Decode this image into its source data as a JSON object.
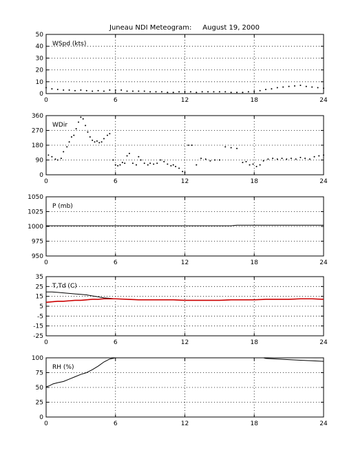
{
  "title": "Juneau NDI Meteogram:     August 19, 2000",
  "colors": {
    "primary": "#000000",
    "secondary": "#cc0000",
    "background": "#ffffff",
    "grid": "#000000"
  },
  "chart_data": [
    {
      "type": "scatter",
      "label": "WSpd (kts)",
      "ylim": [
        0,
        50
      ],
      "yticks": [
        0,
        10,
        20,
        30,
        40,
        50
      ],
      "xlim": [
        0,
        24
      ],
      "xticks": [
        0,
        6,
        12,
        18,
        24
      ],
      "grid": true,
      "series": [
        {
          "x": [
            0,
            0.5,
            1,
            1.5,
            2,
            2.5,
            3,
            3.5,
            4,
            4.5,
            5,
            5.5,
            6,
            6.5,
            7,
            7.5,
            8,
            8.5,
            9,
            9.5,
            10,
            10.5,
            11,
            11.5,
            12,
            12.5,
            13,
            13.5,
            14,
            14.5,
            15,
            15.5,
            16,
            16.5,
            17,
            17.5,
            18,
            18.5,
            19,
            19.5,
            20,
            20.5,
            21,
            21.5,
            22,
            22.5,
            23,
            23.5,
            24
          ],
          "values": [
            5,
            4,
            3.5,
            3,
            3,
            2.5,
            3,
            2.5,
            2,
            2.5,
            2,
            3,
            3,
            3,
            2,
            2,
            2,
            2,
            1.5,
            1.5,
            1.5,
            1,
            1,
            1.5,
            1.5,
            1.5,
            1,
            1.5,
            1.5,
            1.5,
            1.5,
            1.5,
            1,
            1,
            1,
            1.5,
            2,
            2.5,
            3.5,
            4,
            5,
            5.5,
            6,
            6.5,
            7,
            6,
            5.5,
            5,
            4.5
          ]
        }
      ]
    },
    {
      "type": "scatter",
      "label": "WDir",
      "ylim": [
        0,
        360
      ],
      "yticks": [
        0,
        90,
        180,
        270,
        360
      ],
      "xlim": [
        0,
        24
      ],
      "xticks": [
        0,
        6,
        12,
        18,
        24
      ],
      "grid": true,
      "series": [
        {
          "x": [
            0.2,
            0.5,
            0.8,
            1.0,
            1.3,
            1.5,
            1.8,
            2.0,
            2.2,
            2.4,
            2.6,
            2.8,
            3.0,
            3.2,
            3.4,
            3.6,
            3.8,
            4.0,
            4.2,
            4.4,
            4.6,
            4.8,
            5.0,
            5.3,
            5.5,
            5.8,
            6.0,
            6.2,
            6.4,
            6.6,
            6.8,
            7.0,
            7.2,
            7.5,
            7.8,
            8.0,
            8.2,
            8.5,
            8.8,
            9.0,
            9.3,
            9.6,
            9.9,
            10.2,
            10.5,
            10.8,
            11.0,
            11.2,
            11.5,
            11.8,
            12.0,
            12.3,
            12.6,
            13.0,
            13.4,
            13.8,
            14.2,
            14.6,
            15.0,
            15.5,
            16.0,
            16.5,
            17.0,
            17.3,
            17.6,
            17.9,
            18.2,
            18.5,
            18.8,
            19.2,
            19.6,
            20.0,
            20.4,
            20.8,
            21.2,
            21.6,
            22.0,
            22.4,
            22.8,
            23.2,
            23.6,
            24.0
          ],
          "values": [
            120,
            110,
            95,
            90,
            100,
            140,
            170,
            200,
            230,
            240,
            280,
            320,
            350,
            340,
            300,
            260,
            230,
            210,
            200,
            205,
            195,
            200,
            220,
            240,
            250,
            90,
            60,
            55,
            60,
            75,
            70,
            115,
            130,
            70,
            60,
            110,
            90,
            70,
            60,
            70,
            65,
            70,
            90,
            80,
            65,
            55,
            60,
            50,
            40,
            20,
            15,
            180,
            180,
            60,
            100,
            95,
            85,
            90,
            90,
            170,
            165,
            160,
            75,
            80,
            60,
            65,
            50,
            60,
            85,
            95,
            100,
            95,
            100,
            95,
            100,
            95,
            105,
            100,
            95,
            110,
            115,
            120
          ]
        }
      ]
    },
    {
      "type": "line",
      "label": "P (mb)",
      "ylim": [
        950,
        1050
      ],
      "yticks": [
        950,
        975,
        1000,
        1025,
        1050
      ],
      "xlim": [
        0,
        24
      ],
      "xticks": [
        0,
        6,
        12,
        18,
        24
      ],
      "grid": true,
      "series": [
        {
          "x": [
            0,
            2,
            4,
            6,
            8,
            10,
            12,
            14,
            16,
            16.5,
            18,
            20,
            22,
            24
          ],
          "values": [
            1001,
            1001,
            1001,
            1001,
            1001,
            1001,
            1001,
            1001,
            1001,
            1002,
            1002,
            1002,
            1002,
            1002
          ]
        }
      ]
    },
    {
      "type": "line",
      "label": "T,Td (C)",
      "ylim": [
        -25,
        35
      ],
      "yticks": [
        -25,
        -15,
        -5,
        5,
        15,
        25,
        35
      ],
      "xlim": [
        0,
        24
      ],
      "xticks": [
        0,
        6,
        12,
        18,
        24
      ],
      "grid": true,
      "series": [
        {
          "name": "T",
          "x": [
            0,
            0.5,
            1,
            1.5,
            2,
            2.5,
            3,
            3.5,
            4,
            4.5,
            5,
            5.5,
            6,
            7,
            8,
            9,
            10,
            11,
            12,
            13,
            14,
            15,
            16,
            17,
            18,
            19,
            20,
            21,
            22,
            23,
            24
          ],
          "values": [
            19.5,
            19.5,
            19,
            18.5,
            18,
            17.5,
            17,
            16.5,
            15.5,
            14.5,
            13.5,
            13,
            12.5,
            12,
            11.5,
            11.5,
            11.5,
            11.5,
            11,
            11,
            11,
            11,
            11.5,
            11.5,
            11.5,
            12,
            12,
            12,
            12.5,
            12.5,
            12
          ]
        },
        {
          "name": "Td",
          "x": [
            0,
            0.5,
            1,
            1.5,
            2,
            2.5,
            3,
            3.5,
            4,
            4.5,
            5,
            5.5,
            6,
            7,
            8,
            9,
            10,
            11,
            12,
            13,
            14,
            15,
            16,
            17,
            18,
            19,
            20,
            21,
            22,
            23,
            24
          ],
          "values": [
            9,
            9.5,
            10,
            10,
            10.5,
            11,
            11,
            11.5,
            12,
            12,
            12.5,
            12.5,
            12.5,
            12,
            11.5,
            11.5,
            11.5,
            11.5,
            11,
            11,
            11,
            11,
            11.5,
            11.5,
            11.5,
            12,
            12,
            12,
            12.5,
            12.5,
            12
          ]
        }
      ]
    },
    {
      "type": "line",
      "label": "RH (%)",
      "ylim": [
        0,
        100
      ],
      "yticks": [
        0,
        25,
        50,
        75,
        100
      ],
      "xlim": [
        0,
        24
      ],
      "xticks": [
        0,
        6,
        12,
        18,
        24
      ],
      "grid": true,
      "series": [
        {
          "x": [
            0,
            0.3,
            0.6,
            1,
            1.5,
            2,
            2.5,
            3,
            3.5,
            4,
            4.5,
            5,
            5.5,
            6
          ],
          "values": [
            51,
            53,
            56,
            58,
            60,
            64,
            68,
            72,
            75,
            80,
            86,
            93,
            98,
            100
          ]
        },
        {
          "x": [
            18.8,
            19,
            20,
            21,
            22,
            23,
            24
          ],
          "values": [
            100,
            99,
            98,
            97,
            96,
            95,
            94
          ]
        }
      ]
    }
  ]
}
